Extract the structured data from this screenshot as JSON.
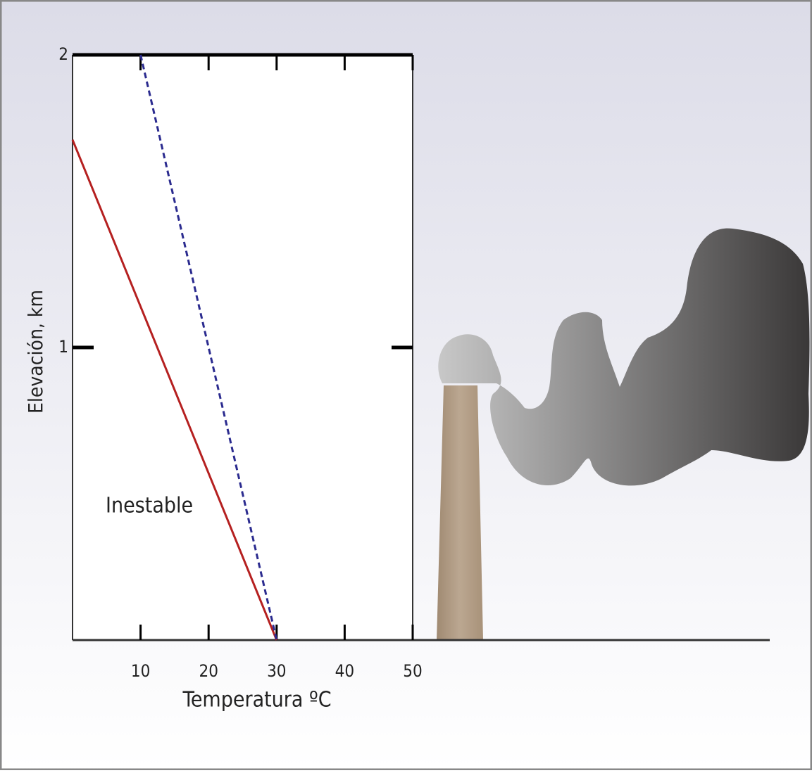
{
  "chart_data": {
    "type": "line",
    "x_label": "Temperatura ºC",
    "y_label": "Elevación, km",
    "annotation": "Inestable",
    "x": [
      0,
      10,
      30
    ],
    "series": [
      {
        "color": "#b52020",
        "dash": false,
        "values": [
          1.71,
          1.14,
          0
        ]
      },
      {
        "color": "#2b2b8f",
        "dash": true,
        "values": [
          null,
          2,
          0
        ]
      }
    ],
    "xlim": [
      0,
      50
    ],
    "xticks": [
      10,
      20,
      30,
      40,
      50
    ],
    "ylim": [
      0,
      2
    ],
    "yticks": [
      1,
      2
    ],
    "grid": false
  }
}
